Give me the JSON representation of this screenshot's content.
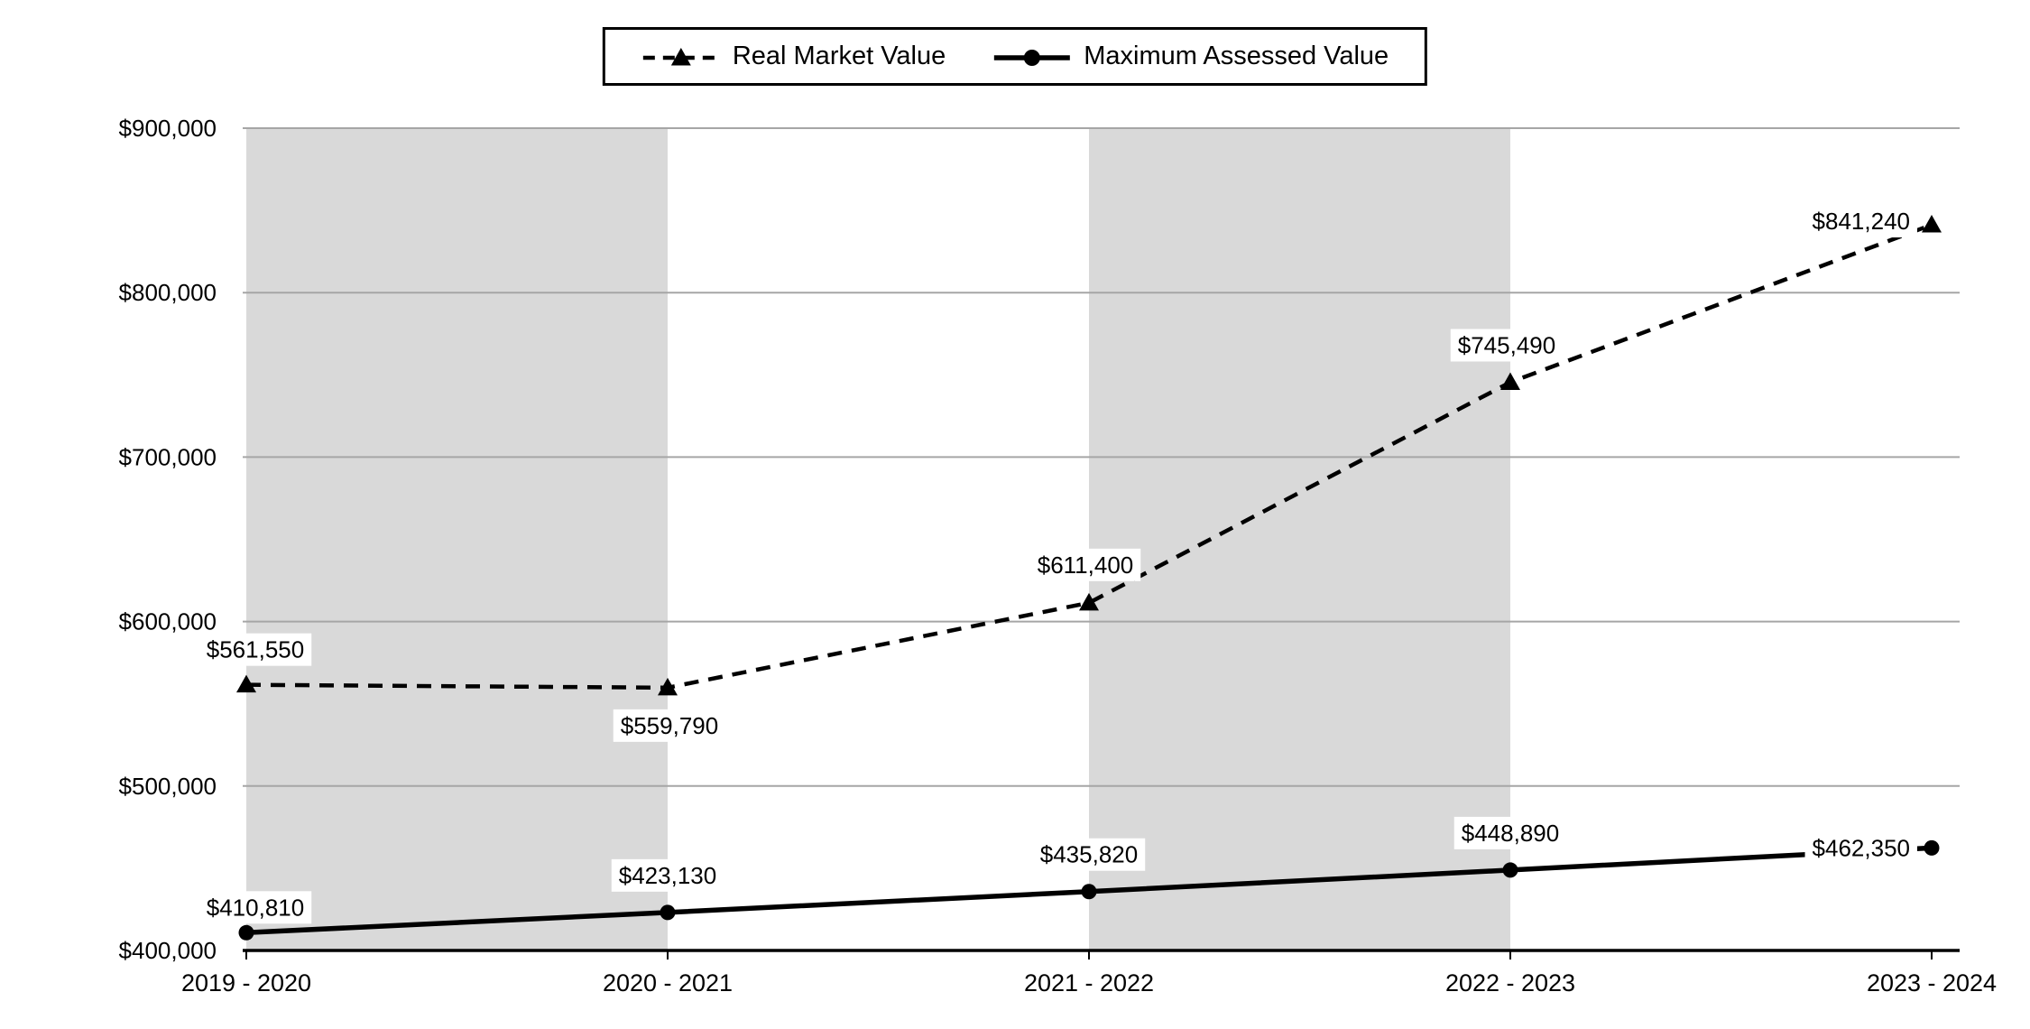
{
  "chart_data": {
    "type": "line",
    "title": "",
    "xlabel": "",
    "ylabel": "",
    "categories": [
      "2019 - 2020",
      "2020 - 2021",
      "2021 - 2022",
      "2022 - 2023",
      "2023 - 2024"
    ],
    "series": [
      {
        "name": "Real Market Value",
        "line_style": "dashed",
        "marker": "triangle",
        "values": [
          561550,
          559790,
          611400,
          745490,
          841240
        ],
        "labels": [
          "$561,550",
          "$559,790",
          "$611,400",
          "$745,490",
          "$841,240"
        ],
        "label_placement": [
          {
            "dx": 10,
            "dy": -30,
            "anchor": "middle"
          },
          {
            "dx": 2,
            "dy": 51,
            "anchor": "middle"
          },
          {
            "dx": -4,
            "dy": -33,
            "anchor": "middle"
          },
          {
            "dx": -4,
            "dy": -32,
            "anchor": "middle"
          },
          {
            "dx": -24,
            "dy": 5,
            "anchor": "end"
          }
        ]
      },
      {
        "name": "Maximum Assessed Value",
        "line_style": "solid",
        "marker": "circle",
        "values": [
          410810,
          423130,
          435820,
          448890,
          462350
        ],
        "labels": [
          "$410,810",
          "$423,130",
          "$435,820",
          "$448,890",
          "$462,350"
        ],
        "label_placement": [
          {
            "dx": 10,
            "dy": -19,
            "anchor": "middle"
          },
          {
            "dx": 0,
            "dy": -32,
            "anchor": "middle"
          },
          {
            "dx": 0,
            "dy": -32,
            "anchor": "middle"
          },
          {
            "dx": 0,
            "dy": -32,
            "anchor": "middle"
          },
          {
            "dx": -24,
            "dy": 9,
            "anchor": "end"
          }
        ]
      }
    ],
    "ylim": [
      400000,
      900000
    ],
    "ytick_step": 100000,
    "ytick_labels": [
      "$400,000",
      "$500,000",
      "$600,000",
      "$700,000",
      "$800,000",
      "$900,000"
    ],
    "grid": true,
    "legend_position": "top-center",
    "shaded_bands": [
      [
        0,
        1
      ],
      [
        2,
        3
      ]
    ],
    "colors": {
      "line": "#000000",
      "grid": "#a6a6a6",
      "band": "#d9d9d9",
      "background": "#ffffff",
      "label_bg": "#ffffff"
    }
  }
}
